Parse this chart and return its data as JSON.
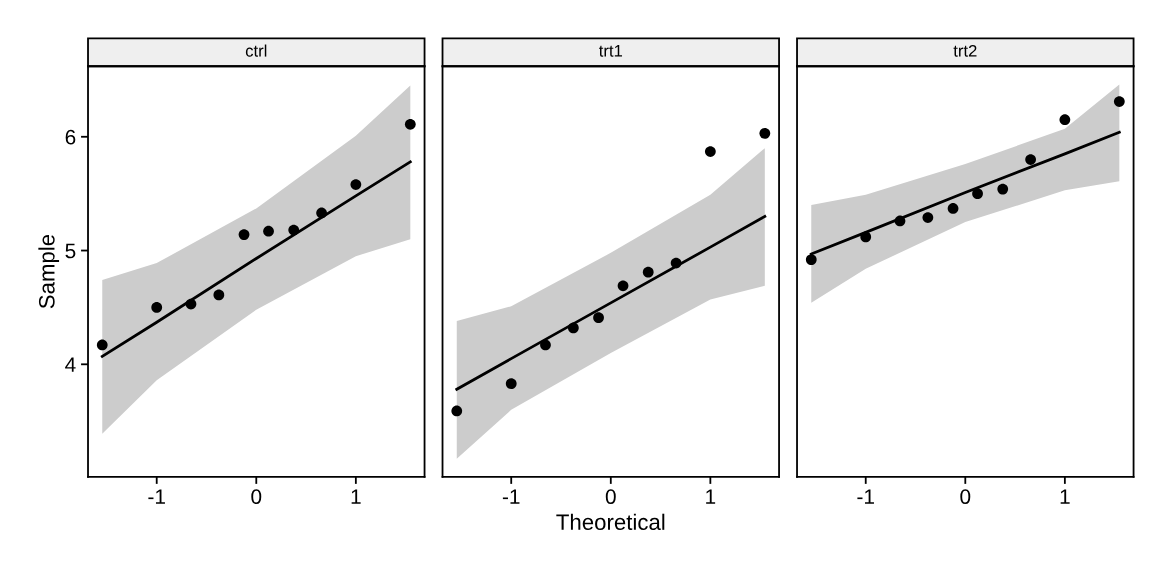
{
  "chart_data": [
    {
      "type": "scatter",
      "title": "ctrl",
      "ylabel": "Sample",
      "xlim": [
        -1.69,
        1.69
      ],
      "ylim": [
        3.01,
        6.62
      ],
      "xticks": [
        -1,
        0,
        1
      ],
      "yticks": [
        4,
        5,
        6
      ],
      "grid": false,
      "legend": false,
      "series": [
        {
          "marker": "circle",
          "color": "#000000",
          "x": [
            -1.547,
            -1.0,
            -0.656,
            -0.376,
            -0.123,
            0.123,
            0.376,
            0.656,
            1.0,
            1.547
          ],
          "values": [
            4.17,
            4.5,
            4.53,
            4.61,
            5.14,
            5.17,
            5.18,
            5.33,
            5.58,
            6.11
          ]
        },
        {
          "type": "line",
          "color": "#000000",
          "x": [
            -1.547,
            -1.0,
            0.0,
            1.0,
            1.547
          ],
          "values": [
            4.07,
            4.37,
            4.93,
            5.48,
            5.78
          ],
          "lower": [
            3.39,
            3.86,
            4.48,
            4.95,
            5.1
          ],
          "upper": [
            4.74,
            4.89,
            5.37,
            6.01,
            6.45
          ]
        }
      ]
    },
    {
      "type": "scatter",
      "title": "trt1",
      "xlabel": "Theoretical",
      "xlim": [
        -1.69,
        1.69
      ],
      "ylim": [
        3.01,
        6.62
      ],
      "xticks": [
        -1,
        0,
        1
      ],
      "yticks": [
        4,
        5,
        6
      ],
      "tick_labels": "x",
      "grid": false,
      "legend": false,
      "series": [
        {
          "marker": "circle",
          "color": "#000000",
          "x": [
            -1.547,
            -1.0,
            -0.656,
            -0.376,
            -0.123,
            0.123,
            0.376,
            0.656,
            1.0,
            1.547
          ],
          "values": [
            3.59,
            3.83,
            4.17,
            4.32,
            4.41,
            4.69,
            4.81,
            4.89,
            5.87,
            6.03
          ]
        },
        {
          "type": "line",
          "color": "#000000",
          "x": [
            -1.547,
            -1.0,
            0.0,
            1.0,
            1.547
          ],
          "values": [
            3.78,
            4.05,
            4.54,
            5.03,
            5.3
          ],
          "lower": [
            3.17,
            3.6,
            4.1,
            4.57,
            4.69
          ],
          "upper": [
            4.38,
            4.51,
            4.98,
            5.49,
            5.9
          ]
        }
      ]
    },
    {
      "type": "scatter",
      "title": "trt2",
      "xlim": [
        -1.69,
        1.69
      ],
      "ylim": [
        3.01,
        6.62
      ],
      "xticks": [
        -1,
        0,
        1
      ],
      "yticks": [
        4,
        5,
        6
      ],
      "tick_labels": "x",
      "grid": false,
      "legend": false,
      "series": [
        {
          "marker": "circle",
          "color": "#000000",
          "x": [
            -1.547,
            -1.0,
            -0.656,
            -0.376,
            -0.123,
            0.123,
            0.376,
            0.656,
            1.0,
            1.547
          ],
          "values": [
            4.92,
            5.12,
            5.26,
            5.29,
            5.37,
            5.5,
            5.54,
            5.8,
            6.15,
            6.31
          ]
        },
        {
          "type": "line",
          "color": "#000000",
          "x": [
            -1.547,
            -1.0,
            0.0,
            1.0,
            1.547
          ],
          "values": [
            4.97,
            5.16,
            5.51,
            5.85,
            6.04
          ],
          "lower": [
            4.54,
            4.84,
            5.25,
            5.53,
            5.61
          ],
          "upper": [
            5.4,
            5.49,
            5.76,
            6.07,
            6.46
          ]
        }
      ]
    }
  ]
}
